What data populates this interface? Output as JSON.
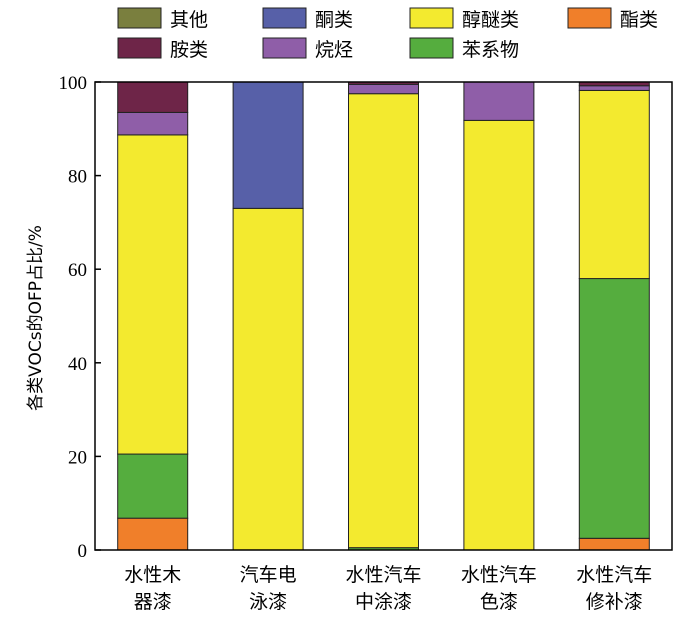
{
  "chart_data": {
    "type": "bar",
    "stacked": true,
    "ylabel": "各类VOCs的OFP占比/%",
    "xlabel": "",
    "ylim": [
      0,
      100
    ],
    "yticks": [
      0,
      20,
      40,
      60,
      80,
      100
    ],
    "grid": false,
    "legend_position": "top",
    "categories": [
      [
        "水性木",
        "器漆"
      ],
      [
        "汽车电",
        "泳漆"
      ],
      [
        "水性汽车",
        "中涂漆"
      ],
      [
        "水性汽车",
        "色漆"
      ],
      [
        "水性汽车",
        "修补漆"
      ]
    ],
    "series": [
      {
        "name": "酯类",
        "color": "#f07f2a",
        "values": [
          6.8,
          0,
          0,
          0,
          2.5
        ]
      },
      {
        "name": "苯系物",
        "color": "#55ad3e",
        "values": [
          13.7,
          0,
          0.5,
          0,
          55.5
        ]
      },
      {
        "name": "醇醚类",
        "color": "#f3ea2f",
        "values": [
          68.2,
          73.0,
          97.0,
          91.8,
          40.2
        ]
      },
      {
        "name": "烷烃",
        "color": "#8f5ea8",
        "values": [
          4.8,
          0,
          2.0,
          8.2,
          1.0
        ]
      },
      {
        "name": "酮类",
        "color": "#5760a8",
        "values": [
          0,
          27.0,
          0,
          0,
          0
        ]
      },
      {
        "name": "胺类",
        "color": "#6e2548",
        "values": [
          6.5,
          0,
          0.5,
          0,
          0.8
        ]
      },
      {
        "name": "其他",
        "color": "#7a7f3e",
        "values": [
          0,
          0,
          0,
          0,
          0
        ]
      }
    ],
    "legend_order": [
      "其他",
      "酮类",
      "醇醚类",
      "酯类",
      "胺类",
      "烷烃",
      "苯系物"
    ]
  }
}
